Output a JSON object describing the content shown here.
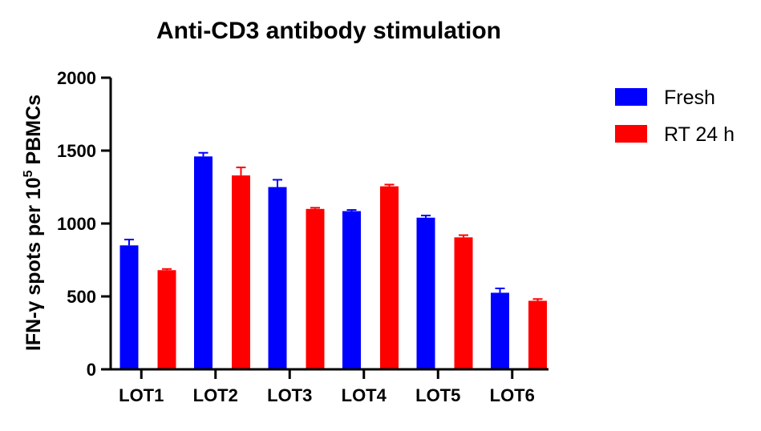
{
  "chart_data": {
    "type": "bar",
    "title": "Anti-CD3 antibody stimulation",
    "ylabel_prefix": "IFN-γ spots  per 10",
    "ylabel_superscript": "5",
    "ylabel_suffix": " PBMCs",
    "xlabel": "",
    "ylim": [
      0,
      2000
    ],
    "yticks": [
      "0",
      "500",
      "1000",
      "1500",
      "2000"
    ],
    "ytick_values": [
      0,
      500,
      1000,
      1500,
      2000
    ],
    "categories": [
      "LOT1",
      "LOT2",
      "LOT3",
      "LOT4",
      "LOT5",
      "LOT6"
    ],
    "series": [
      {
        "name": "Fresh",
        "color": "#0000ff",
        "values": [
          850,
          1460,
          1250,
          1085,
          1040,
          525
        ],
        "errors": [
          40,
          25,
          50,
          8,
          15,
          30
        ]
      },
      {
        "name": "RT 24 h",
        "color": "#ff0000",
        "values": [
          680,
          1330,
          1100,
          1255,
          905,
          470
        ],
        "errors": [
          8,
          55,
          8,
          12,
          15,
          12
        ]
      }
    ],
    "legend_position": "right",
    "grid": false
  }
}
